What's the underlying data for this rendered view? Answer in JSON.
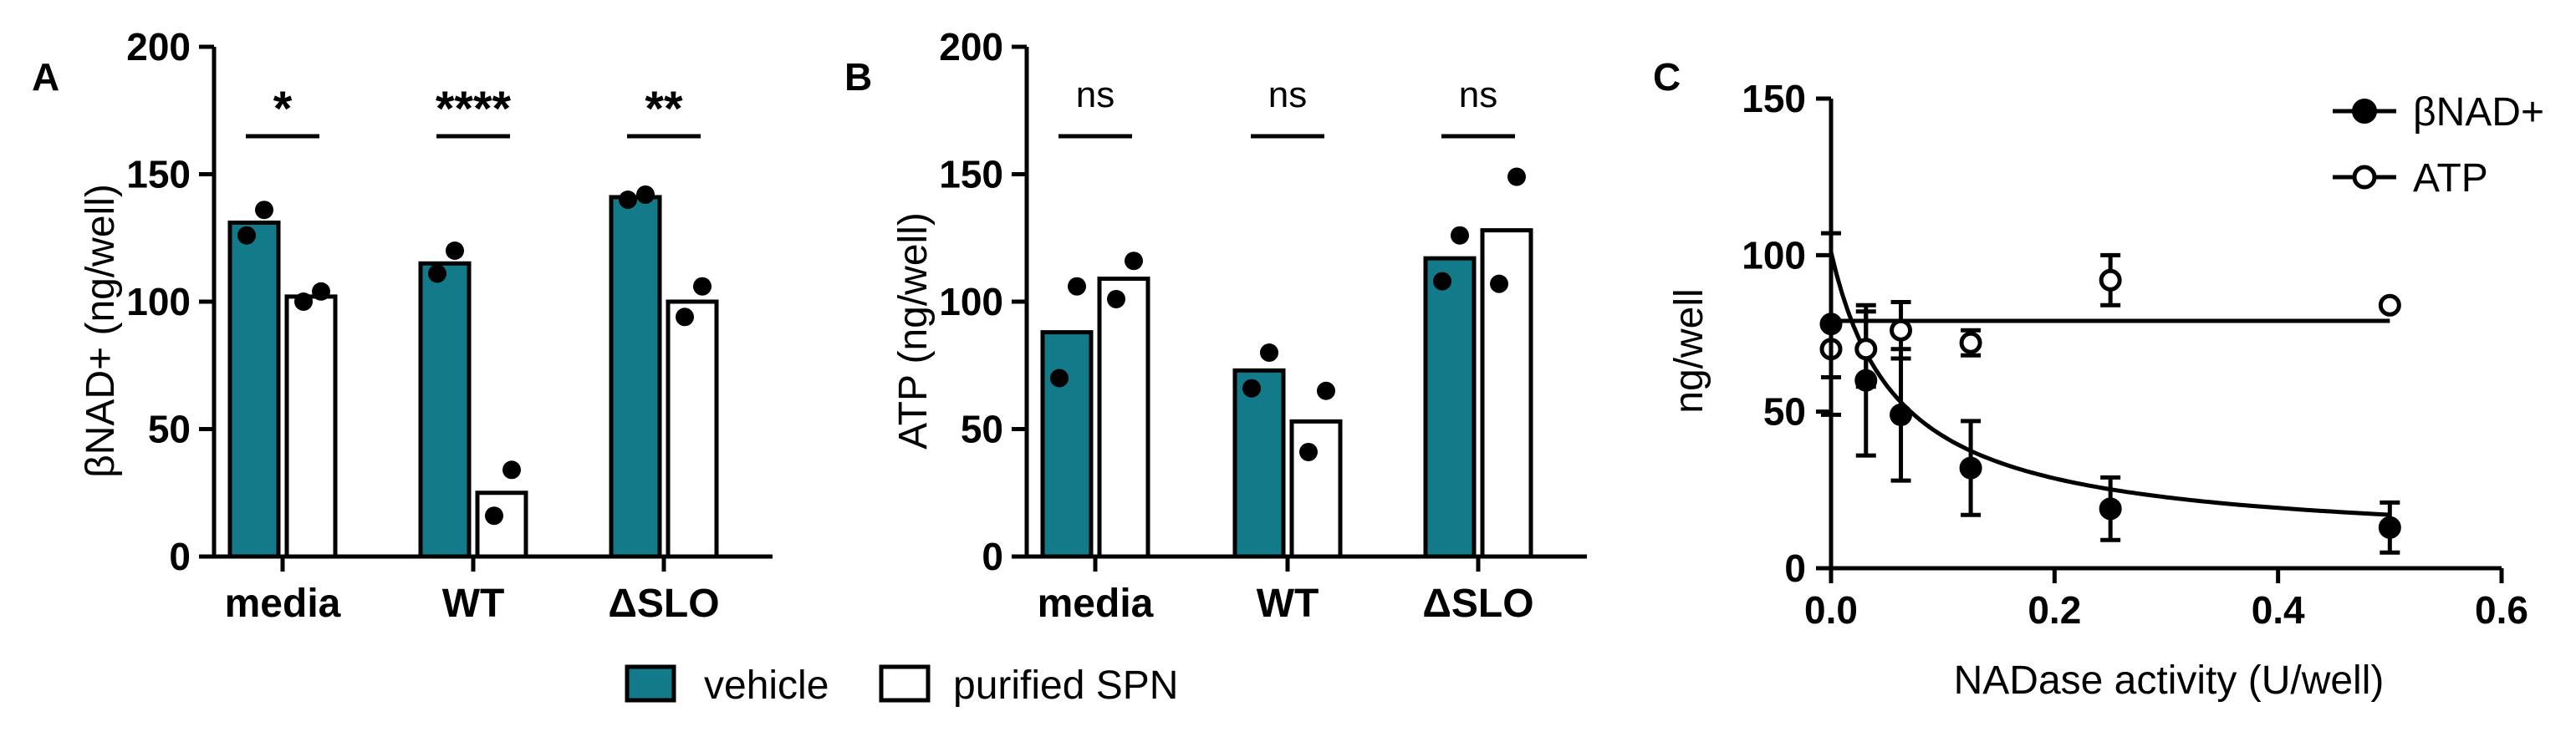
{
  "colors": {
    "vehicle": "#137a8a",
    "purified": "#ffffff",
    "ink": "#000000"
  },
  "legend": {
    "items": [
      "vehicle",
      "purified SPN"
    ]
  },
  "chart_data": [
    {
      "panel": "A",
      "type": "bar",
      "ylabel": "βNAD+ (ng/well)",
      "ylim": [
        0,
        200
      ],
      "yticks": [
        "0",
        "50",
        "100",
        "150",
        "200"
      ],
      "categories": [
        "media",
        "WT",
        "ΔSLO"
      ],
      "series": [
        {
          "name": "vehicle",
          "values": [
            131,
            115,
            141
          ],
          "points": [
            [
              126,
              136
            ],
            [
              111,
              120
            ],
            [
              140,
              142
            ]
          ]
        },
        {
          "name": "purified SPN",
          "values": [
            102,
            25,
            100
          ],
          "points": [
            [
              100,
              104
            ],
            [
              16,
              34
            ],
            [
              94,
              106
            ]
          ]
        }
      ],
      "significance": [
        "*",
        "****",
        "**"
      ]
    },
    {
      "panel": "B",
      "type": "bar",
      "ylabel": "ATP (ng/well)",
      "ylim": [
        0,
        200
      ],
      "yticks": [
        "0",
        "50",
        "100",
        "150",
        "200"
      ],
      "categories": [
        "media",
        "WT",
        "ΔSLO"
      ],
      "series": [
        {
          "name": "vehicle",
          "values": [
            88,
            73,
            117
          ],
          "points": [
            [
              70,
              106
            ],
            [
              66,
              80
            ],
            [
              108,
              126
            ]
          ]
        },
        {
          "name": "purified SPN",
          "values": [
            109,
            53,
            128
          ],
          "points": [
            [
              101,
              116
            ],
            [
              41,
              65
            ],
            [
              107,
              149
            ]
          ]
        }
      ],
      "significance": [
        "ns",
        "ns",
        "ns"
      ]
    },
    {
      "panel": "C",
      "type": "scatter",
      "xlabel": "NADase activity (U/well)",
      "ylabel": "ng/well",
      "xlim": [
        0,
        0.6
      ],
      "ylim": [
        0,
        150
      ],
      "xticks": [
        "0.0",
        "0.2",
        "0.4",
        "0.6"
      ],
      "yticks": [
        "0",
        "50",
        "100",
        "150"
      ],
      "series": [
        {
          "name": "βNAD+",
          "marker": "filled",
          "x": [
            0,
            0.03125,
            0.0625,
            0.125,
            0.25,
            0.5
          ],
          "y": [
            78,
            60,
            49,
            32,
            19,
            13
          ],
          "err": [
            29,
            24,
            21,
            15,
            10,
            8
          ],
          "fit": "hyperbolic decay"
        },
        {
          "name": "ATP",
          "marker": "open",
          "x": [
            0,
            0.03125,
            0.0625,
            0.125,
            0.25,
            0.5
          ],
          "y": [
            70,
            70,
            76,
            72,
            92,
            84
          ],
          "err": [
            9,
            12,
            9,
            4,
            8,
            1
          ],
          "fit": "flat line at 79"
        }
      ]
    }
  ]
}
